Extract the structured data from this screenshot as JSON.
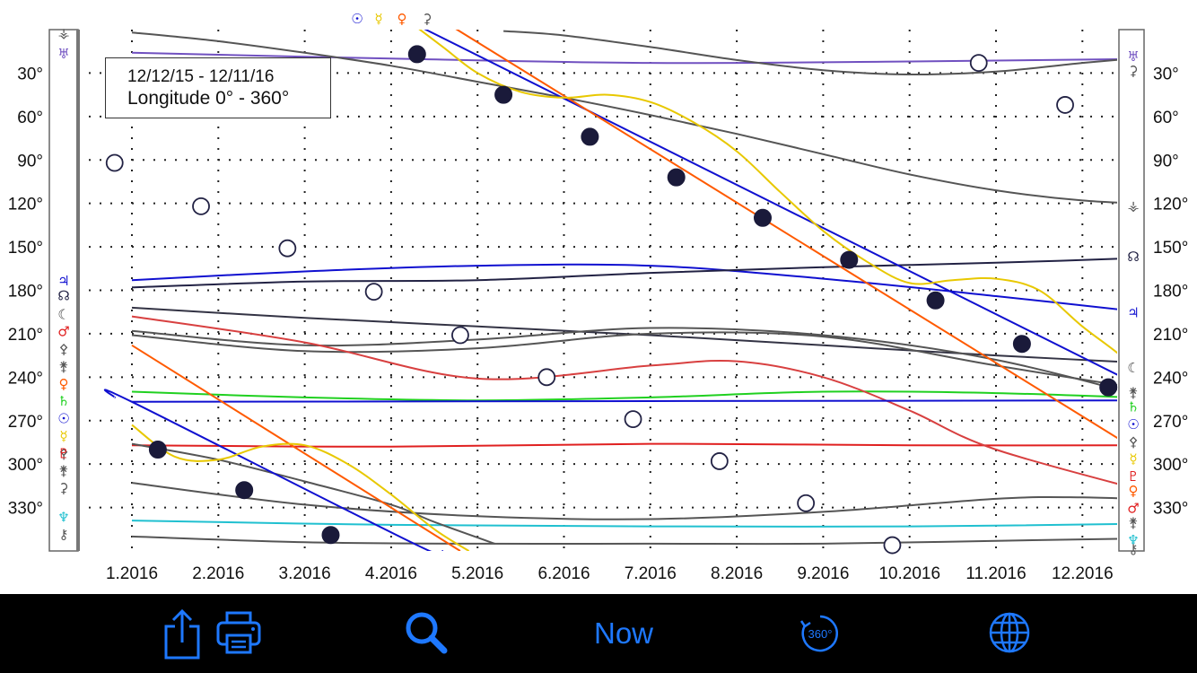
{
  "chart_data": {
    "type": "line",
    "date_range": "12/12/15 - 12/11/16",
    "coordinate": "Longitude  0° - 360°",
    "x_tick_labels": [
      "1.2016",
      "2.2016",
      "3.2016",
      "4.2016",
      "5.2016",
      "6.2016",
      "7.2016",
      "8.2016",
      "9.2016",
      "10.2016",
      "11.2016",
      "12.2016"
    ],
    "y_tick_labels": [
      "30°",
      "60°",
      "90°",
      "120°",
      "150°",
      "180°",
      "210°",
      "240°",
      "270°",
      "300°",
      "330°"
    ],
    "y_ticks": [
      30,
      60,
      90,
      120,
      150,
      180,
      210,
      240,
      270,
      300,
      330
    ],
    "xlim": [
      0,
      12
    ],
    "ylim": [
      0,
      360
    ],
    "y_reversed": true,
    "grid": true,
    "top_glyphs": [
      {
        "symbol": "☉",
        "color": "#1010d0"
      },
      {
        "symbol": "☿",
        "color": "#e8c800"
      },
      {
        "symbol": "♀",
        "color": "#ff5a00"
      },
      {
        "symbol": "⚳",
        "color": "#555555"
      }
    ],
    "left_glyphs": [
      {
        "symbol": "⚶",
        "color": "#555555",
        "y": 2
      },
      {
        "symbol": "♅",
        "color": "#7050c0",
        "y": 16
      },
      {
        "symbol": "♃",
        "color": "#1010d0",
        "y": 173
      },
      {
        "symbol": "☊",
        "color": "#222244",
        "y": 183
      },
      {
        "symbol": "☾",
        "color": "#444444",
        "y": 196
      },
      {
        "symbol": "♂",
        "color": "#e02020",
        "y": 208
      },
      {
        "symbol": "⚴",
        "color": "#555555",
        "y": 220
      },
      {
        "symbol": "⚵",
        "color": "#555555",
        "y": 232
      },
      {
        "symbol": "♀",
        "color": "#ff5a00",
        "y": 244
      },
      {
        "symbol": "♄",
        "color": "#20d020",
        "y": 256
      },
      {
        "symbol": "☉",
        "color": "#1010d0",
        "y": 268
      },
      {
        "symbol": "☿",
        "color": "#e8c800",
        "y": 280
      },
      {
        "symbol": "⚴",
        "color": "#555555",
        "y": 292
      },
      {
        "symbol": "♇",
        "color": "#e02020",
        "y": 292
      },
      {
        "symbol": "⚵",
        "color": "#555555",
        "y": 304
      },
      {
        "symbol": "⚳",
        "color": "#555555",
        "y": 316
      },
      {
        "symbol": "♆",
        "color": "#20c0d0",
        "y": 336
      },
      {
        "symbol": "⚷",
        "color": "#555555",
        "y": 348
      }
    ],
    "right_glyphs": [
      {
        "symbol": "♅",
        "color": "#7050c0",
        "y": 18
      },
      {
        "symbol": "⚳",
        "color": "#555555",
        "y": 28
      },
      {
        "symbol": "⚶",
        "color": "#555555",
        "y": 121
      },
      {
        "symbol": "☊",
        "color": "#222244",
        "y": 156
      },
      {
        "symbol": "♃",
        "color": "#1010d0",
        "y": 195
      },
      {
        "symbol": "☾",
        "color": "#444444",
        "y": 233
      },
      {
        "symbol": "⚵",
        "color": "#555555",
        "y": 250
      },
      {
        "symbol": "♄",
        "color": "#20d020",
        "y": 260
      },
      {
        "symbol": "☉",
        "color": "#1010d0",
        "y": 272
      },
      {
        "symbol": "⚴",
        "color": "#555555",
        "y": 284
      },
      {
        "symbol": "☿",
        "color": "#e8c800",
        "y": 296
      },
      {
        "symbol": "♇",
        "color": "#e02020",
        "y": 308
      },
      {
        "symbol": "♀",
        "color": "#ff5a00",
        "y": 318
      },
      {
        "symbol": "♂",
        "color": "#e02020",
        "y": 330
      },
      {
        "symbol": "⚵",
        "color": "#555555",
        "y": 340
      },
      {
        "symbol": "♆",
        "color": "#20c0d0",
        "y": 352
      },
      {
        "symbol": "⚷",
        "color": "#555555",
        "y": 358
      }
    ],
    "series": [
      {
        "color": "#7050c0",
        "x": [
          0,
          3,
          6,
          9,
          12
        ],
        "y": [
          16,
          20,
          23,
          22,
          20
        ]
      },
      {
        "color": "#555555",
        "x": [
          0,
          1,
          2,
          3,
          4,
          5,
          6,
          7,
          8,
          9,
          10,
          11,
          12
        ],
        "y": [
          2,
          8,
          16,
          25,
          36,
          47,
          59,
          72,
          86,
          100,
          111,
          118,
          121
        ]
      },
      {
        "color": "#555555",
        "x": [
          4.3,
          5,
          6,
          7,
          8,
          9,
          10,
          11,
          12
        ],
        "y": [
          1,
          4,
          12,
          21,
          28,
          31,
          29,
          23,
          18
        ]
      },
      {
        "color": "#1010d0",
        "x": [
          0,
          2,
          4,
          6,
          8,
          10,
          12
        ],
        "y": [
          173,
          167,
          163,
          163,
          172,
          184,
          197
        ]
      },
      {
        "color": "#222244",
        "x": [
          0,
          2,
          4,
          6,
          8,
          10,
          12
        ],
        "y": [
          178,
          174,
          173,
          168,
          164,
          161,
          157
        ]
      },
      {
        "color": "#e02020",
        "x": [
          0,
          3,
          6,
          9,
          12
        ],
        "y": [
          287,
          288,
          286,
          287,
          287
        ]
      },
      {
        "color": "#20d020",
        "x": [
          0,
          2,
          4,
          6,
          8,
          10,
          12
        ],
        "y": [
          250,
          254,
          256,
          254,
          250,
          251,
          255
        ]
      },
      {
        "color": "#20c0d0",
        "x": [
          0,
          3,
          6,
          9,
          12
        ],
        "y": [
          339,
          342,
          343,
          343,
          341
        ]
      },
      {
        "color": "#555555",
        "x": [
          0,
          2,
          4,
          6,
          8,
          10,
          12
        ],
        "y": [
          350,
          354,
          355,
          355,
          355,
          353,
          351
        ]
      },
      {
        "color": "#555555",
        "x": [
          0,
          2,
          4,
          6,
          8,
          10,
          11,
          12
        ],
        "y": [
          313,
          328,
          336,
          338,
          333,
          324,
          323,
          325
        ]
      },
      {
        "color": "#555555",
        "x": [
          0,
          1,
          2,
          3,
          3.5,
          4.2
        ],
        "y": [
          286,
          297,
          312,
          328,
          340,
          355
        ]
      },
      {
        "color": "#333344",
        "x": [
          0,
          2,
          4,
          6,
          8,
          10,
          12
        ],
        "y": [
          192,
          199,
          205,
          211,
          218,
          225,
          231
        ]
      },
      {
        "color": "#555555",
        "x": [
          0,
          2,
          4,
          6,
          8,
          10,
          12
        ],
        "y": [
          208,
          218,
          214,
          206,
          211,
          228,
          258
        ]
      },
      {
        "color": "#555555",
        "x": [
          0,
          2,
          4,
          6,
          8,
          10,
          12
        ],
        "y": [
          211,
          222,
          220,
          210,
          212,
          232,
          251
        ]
      },
      {
        "color": "#d84040",
        "x": [
          0,
          2,
          4,
          6,
          7,
          8,
          9,
          10,
          12
        ],
        "y": [
          198,
          216,
          241,
          232,
          229,
          240,
          263,
          290,
          323
        ]
      },
      {
        "color": "#1010d0",
        "x": [
          0,
          12
        ],
        "y": [
          257,
          256
        ]
      },
      {
        "color": "#1010d0",
        "x": [
          -0.2,
          0,
          3.3,
          3.6
        ],
        "y": [
          254,
          257,
          356,
          360
        ]
      },
      {
        "color": "#1010d0",
        "x": [
          3.2,
          12.3
        ],
        "y": [
          -6,
          265
        ]
      },
      {
        "color": "#ff5a00",
        "x": [
          0,
          3.8
        ],
        "y": [
          218,
          360
        ]
      },
      {
        "color": "#ff5a00",
        "x": [
          3.6,
          12.3
        ],
        "y": [
          -6,
          315
        ]
      },
      {
        "color": "#e8c800",
        "x": [
          0,
          0.5,
          1,
          1.5,
          2,
          2.5,
          3,
          3.5,
          3.9
        ],
        "y": [
          273,
          295,
          297,
          288,
          287,
          300,
          321,
          345,
          360
        ]
      },
      {
        "color": "#e8c800",
        "x": [
          3.2,
          3.6,
          4,
          4.5,
          5,
          5.5,
          6,
          6.5,
          7,
          7.5,
          8,
          8.5,
          9,
          9.5,
          10,
          10.5,
          11,
          11.5,
          12,
          12.3
        ],
        "y": [
          -6,
          12,
          30,
          43,
          47,
          45,
          50,
          64,
          84,
          112,
          139,
          160,
          175,
          173,
          172,
          180,
          205,
          228,
          258,
          275
        ]
      }
    ],
    "sun_markers": [
      {
        "x": 0.3,
        "y": 290
      },
      {
        "x": 1.3,
        "y": 318
      },
      {
        "x": 2.3,
        "y": 349
      },
      {
        "x": 3.3,
        "y": 17
      },
      {
        "x": 4.3,
        "y": 45
      },
      {
        "x": 5.3,
        "y": 74
      },
      {
        "x": 6.3,
        "y": 102
      },
      {
        "x": 7.3,
        "y": 130
      },
      {
        "x": 8.3,
        "y": 159
      },
      {
        "x": 9.3,
        "y": 187
      },
      {
        "x": 10.3,
        "y": 217
      },
      {
        "x": 11.3,
        "y": 247
      }
    ],
    "moon_markers": [
      {
        "x": -0.2,
        "y": 92
      },
      {
        "x": 0.8,
        "y": 122
      },
      {
        "x": 1.8,
        "y": 151
      },
      {
        "x": 2.8,
        "y": 181
      },
      {
        "x": 3.8,
        "y": 211
      },
      {
        "x": 4.8,
        "y": 240
      },
      {
        "x": 5.8,
        "y": 269
      },
      {
        "x": 6.8,
        "y": 298
      },
      {
        "x": 7.8,
        "y": 327
      },
      {
        "x": 8.8,
        "y": 356
      },
      {
        "x": 9.8,
        "y": 23
      },
      {
        "x": 10.8,
        "y": 52
      }
    ]
  },
  "toolbar": {
    "now_label": "Now",
    "rotate_label": "360°",
    "accent": "#1e78ff"
  }
}
